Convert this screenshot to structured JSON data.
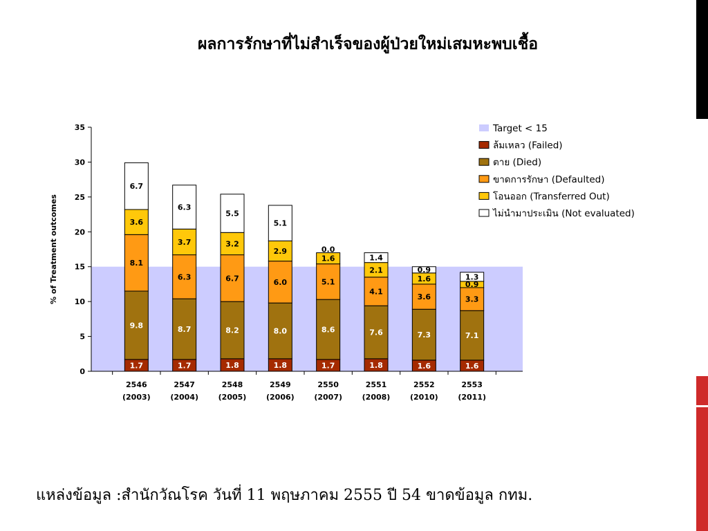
{
  "slide": {
    "title": "ผลการรักษาที่ไม่สำเร็จของผู้ป่วยใหม่เสมหะพบเชื้อ",
    "source": "แหล่งข้อมูล :สำนักวัณโรค วันที่ 11 พฤษภาคม 2555 ปี 54 ขาดข้อมูล กทม."
  },
  "chart_data": {
    "type": "bar",
    "stacked": true,
    "title": "",
    "xlabel": "",
    "ylabel": "% of Treatment outcomes",
    "ylim": [
      0,
      35
    ],
    "yticks": [
      0,
      5,
      10,
      15,
      20,
      25,
      30,
      35
    ],
    "categories": [
      {
        "year": "2546",
        "ce": "(2003)"
      },
      {
        "year": "2547",
        "ce": "(2004)"
      },
      {
        "year": "2548",
        "ce": "(2005)"
      },
      {
        "year": "2549",
        "ce": "(2006)"
      },
      {
        "year": "2550",
        "ce": "(2007)"
      },
      {
        "year": "2551",
        "ce": "(2008)"
      },
      {
        "year": "2552",
        "ce": "(2010)"
      },
      {
        "year": "2553",
        "ce": "(2011)"
      }
    ],
    "target": {
      "name": "Target < 15",
      "value": 15,
      "color": "#ccccff"
    },
    "series": [
      {
        "name": "ล้มเหลว (Failed)",
        "color": "#a52a00",
        "label_color": "#ffffff",
        "values": [
          1.7,
          1.7,
          1.8,
          1.8,
          1.7,
          1.8,
          1.6,
          1.6
        ]
      },
      {
        "name": "ตาย (Died)",
        "color": "#a0720f",
        "label_color": "#ffffff",
        "values": [
          9.8,
          8.7,
          8.2,
          8.0,
          8.6,
          7.6,
          7.3,
          7.1
        ]
      },
      {
        "name": "ขาดการรักษา (Defaulted)",
        "color": "#ff9a14",
        "label_color": "#000000",
        "values": [
          8.1,
          6.3,
          6.7,
          6.0,
          5.1,
          4.1,
          3.6,
          3.3
        ]
      },
      {
        "name": "โอนออก (Transferred Out)",
        "color": "#ffc80a",
        "label_color": "#000000",
        "values": [
          3.6,
          3.7,
          3.2,
          2.9,
          1.6,
          2.1,
          1.6,
          0.9
        ]
      },
      {
        "name": "ไม่นำมาประเมิน (Not evaluated)",
        "color": "#ffffff",
        "label_color": "#000000",
        "values": [
          6.7,
          6.3,
          5.5,
          5.1,
          0.0,
          1.4,
          0.9,
          1.3
        ]
      }
    ],
    "legend_position": "top-right",
    "grid": false
  }
}
